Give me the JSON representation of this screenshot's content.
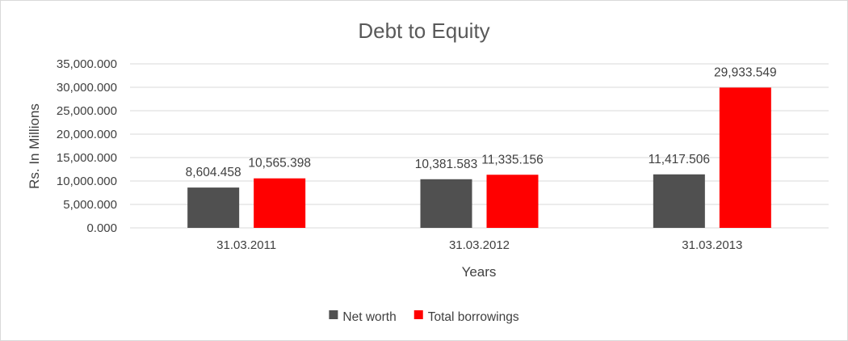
{
  "chart_data": {
    "type": "bar",
    "title": "Debt to Equity",
    "xlabel": "Years",
    "ylabel": "Rs. In Millions",
    "categories": [
      "31.03.2011",
      "31.03.2012",
      "31.03.2013"
    ],
    "series": [
      {
        "name": "Net worth",
        "color": "#505050",
        "values": [
          8604.458,
          10381.583,
          11417.506
        ],
        "labels": [
          "8,604.458",
          "10,381.583",
          "11,417.506"
        ]
      },
      {
        "name": "Total borrowings",
        "color": "#ff0000",
        "values": [
          10565.398,
          11335.156,
          29933.549
        ],
        "labels": [
          "10,565.398",
          "11,335.156",
          "29,933.549"
        ]
      }
    ],
    "ylim": [
      0,
      35000
    ],
    "ytick_values": [
      0,
      5000,
      10000,
      15000,
      20000,
      25000,
      30000,
      35000
    ],
    "ytick_labels": [
      "0.000",
      "5,000.000",
      "10,000.000",
      "15,000.000",
      "20,000.000",
      "25,000.000",
      "30,000.000",
      "35,000.000"
    ],
    "grid": true,
    "legend_position": "bottom"
  }
}
